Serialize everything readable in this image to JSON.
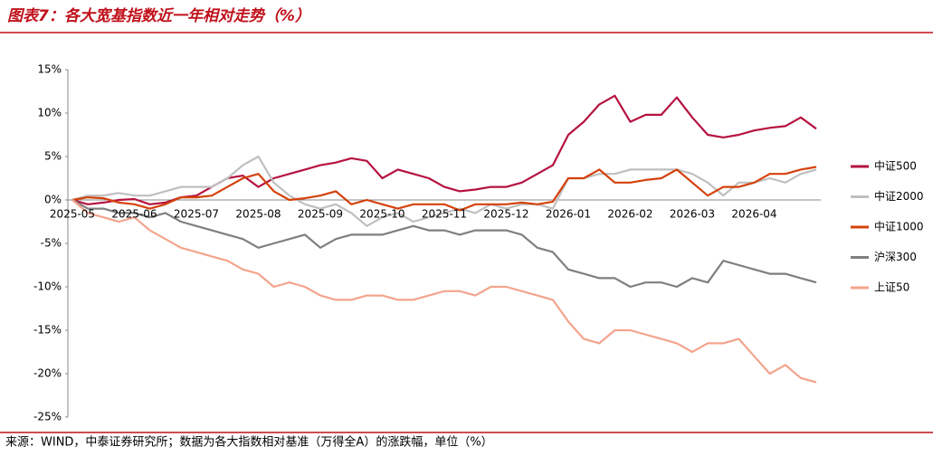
{
  "title": "图表7：各大宽基指数近一年相对走势（%）",
  "source": "来源：WIND，中泰证券研究所；数据为各大指数相对基准（万得全A）的涨跌幅，单位（%）",
  "chart_data": {
    "type": "line",
    "categories": [
      "2025-05",
      null,
      null,
      null,
      "2025-06",
      null,
      null,
      null,
      "2025-07",
      null,
      null,
      null,
      "2025-08",
      null,
      null,
      null,
      "2025-09",
      null,
      null,
      null,
      "2025-10",
      null,
      null,
      null,
      "2025-11",
      null,
      null,
      null,
      "2025-12",
      null,
      null,
      null,
      "2026-01",
      null,
      null,
      null,
      "2026-02",
      null,
      null,
      null,
      "2026-03",
      null,
      null,
      null,
      "2026-04",
      null,
      null,
      null,
      null
    ],
    "ylim": [
      -25,
      15
    ],
    "yticks": [
      {
        "value": -25,
        "label": "-25%"
      },
      {
        "value": -20,
        "label": "-20%"
      },
      {
        "value": -15,
        "label": "-15%"
      },
      {
        "value": -10,
        "label": "-10%"
      },
      {
        "value": -5,
        "label": "-5%"
      },
      {
        "value": 0,
        "label": "0%"
      },
      {
        "value": 5,
        "label": "5%"
      },
      {
        "value": 10,
        "label": "10%"
      },
      {
        "value": 15,
        "label": "15%"
      }
    ],
    "grid": false,
    "legend": "right",
    "series": [
      {
        "name": "中证500",
        "color": "#b5123f",
        "values": [
          0,
          -0.5,
          -0.3,
          0,
          0.1,
          -0.5,
          -0.3,
          0.3,
          0.5,
          1.5,
          2.5,
          2.8,
          1.5,
          2.5,
          3.0,
          3.5,
          4.0,
          4.3,
          4.8,
          4.5,
          2.5,
          3.5,
          3.0,
          2.5,
          1.5,
          1.0,
          1.2,
          1.5,
          1.5,
          2.0,
          3.0,
          4.0,
          7.5,
          9.0,
          11.0,
          12.0,
          9.0,
          9.8,
          9.8,
          11.8,
          9.5,
          7.5,
          7.2,
          7.5,
          8.0,
          8.3,
          8.5,
          9.5,
          8.2
        ]
      },
      {
        "name": "中证2000",
        "color": "#bfbfbf",
        "values": [
          0,
          0.5,
          0.5,
          0.8,
          0.5,
          0.5,
          1.0,
          1.5,
          1.5,
          1.5,
          2.5,
          4.0,
          5.0,
          2.0,
          0.5,
          -0.5,
          -1.0,
          -0.5,
          -1.5,
          -3.0,
          -2.0,
          -1.5,
          -2.5,
          -2.0,
          -1.5,
          -1.0,
          -1.5,
          -0.5,
          -1.0,
          -0.5,
          -0.5,
          -1.0,
          2.5,
          2.5,
          3.0,
          3.0,
          3.5,
          3.5,
          3.5,
          3.5,
          3.0,
          2.0,
          0.5,
          2.0,
          2.0,
          2.5,
          2.0,
          3.0,
          3.5
        ]
      },
      {
        "name": "中证1000",
        "color": "#d4420c",
        "values": [
          0,
          0.3,
          0.2,
          -0.3,
          -0.5,
          -1.0,
          -0.5,
          0.3,
          0.3,
          0.5,
          1.5,
          2.5,
          3.0,
          1.0,
          0.0,
          0.2,
          0.5,
          1.0,
          -0.5,
          0.0,
          -0.5,
          -1.0,
          -0.5,
          -0.5,
          -0.5,
          -1.2,
          -0.5,
          -0.5,
          -0.5,
          -0.3,
          -0.5,
          -0.2,
          2.5,
          2.5,
          3.5,
          2.0,
          2.0,
          2.3,
          2.5,
          3.5,
          2.0,
          0.5,
          1.5,
          1.5,
          2.0,
          3.0,
          3.0,
          3.5,
          3.8
        ]
      },
      {
        "name": "沪深300",
        "color": "#7f7f7f",
        "values": [
          0,
          -1.0,
          -1.0,
          -1.5,
          -1.5,
          -2.0,
          -1.5,
          -2.5,
          -3.0,
          -3.5,
          -4.0,
          -4.5,
          -5.5,
          -5.0,
          -4.5,
          -4.0,
          -5.5,
          -4.5,
          -4.0,
          -4.0,
          -4.0,
          -3.5,
          -3.0,
          -3.5,
          -3.5,
          -4.0,
          -3.5,
          -3.5,
          -3.5,
          -4.0,
          -5.5,
          -6.0,
          -8.0,
          -8.5,
          -9.0,
          -9.0,
          -10.0,
          -9.5,
          -9.5,
          -10.0,
          -9.0,
          -9.5,
          -7.0,
          -7.5,
          -8.0,
          -8.5,
          -8.5,
          -9.0,
          -9.5
        ]
      },
      {
        "name": "上证50",
        "color": "#f4a48c",
        "values": [
          0,
          -1.5,
          -2.0,
          -2.5,
          -2.0,
          -3.5,
          -4.5,
          -5.5,
          -6.0,
          -6.5,
          -7.0,
          -8.0,
          -8.5,
          -10.0,
          -9.5,
          -10.0,
          -11.0,
          -11.5,
          -11.5,
          -11.0,
          -11.0,
          -11.5,
          -11.5,
          -11.0,
          -10.5,
          -10.5,
          -11.0,
          -10.0,
          -10.0,
          -10.5,
          -11.0,
          -11.5,
          -14.0,
          -16.0,
          -16.5,
          -15.0,
          -15.0,
          -15.5,
          -16.0,
          -16.5,
          -17.5,
          -16.5,
          -16.5,
          -16.0,
          -18.0,
          -20.0,
          -19.0,
          -20.5,
          -21.0
        ]
      }
    ]
  }
}
